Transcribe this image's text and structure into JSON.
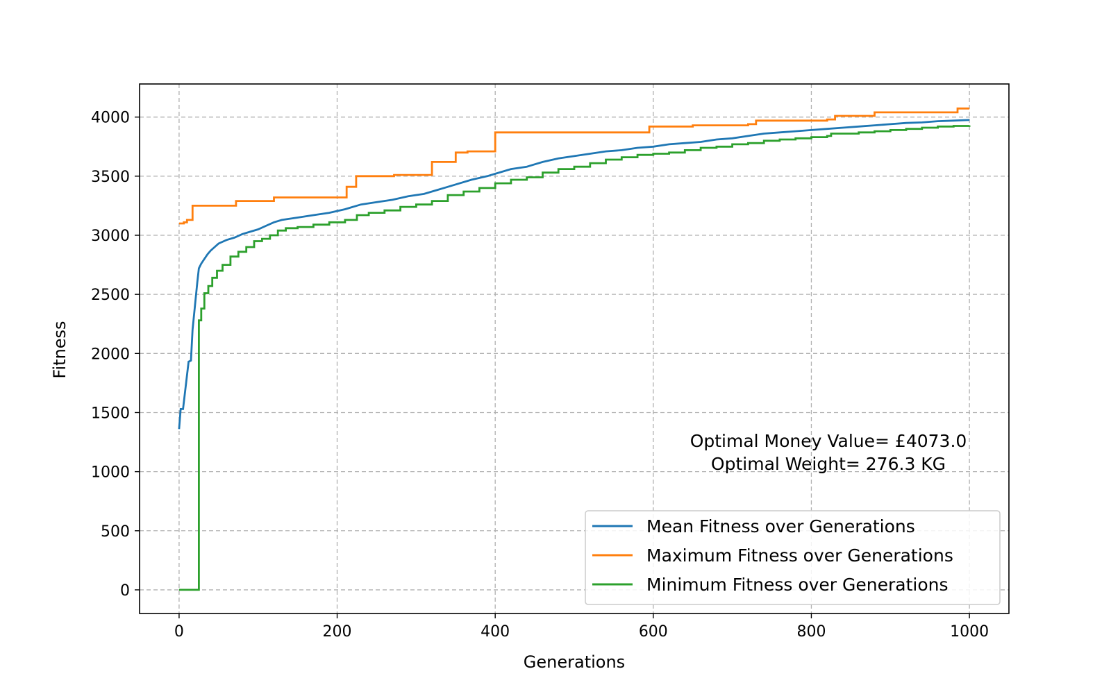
{
  "chart_data": {
    "type": "line",
    "title": "",
    "xlabel": "Generations",
    "ylabel": "Fitness",
    "xlim": [
      -50,
      1050
    ],
    "ylim": [
      -200,
      4280
    ],
    "x_ticks": [
      0,
      200,
      400,
      600,
      800,
      1000
    ],
    "y_ticks": [
      0,
      500,
      1000,
      1500,
      2000,
      2500,
      3000,
      3500,
      4000
    ],
    "grid": true,
    "legend_placement": "lower-right",
    "annotation": {
      "line1": "Optimal Money Value= £4073.0",
      "line2": "Optimal Weight= 276.3 KG"
    },
    "series": [
      {
        "name": "Mean Fitness over Generations",
        "color": "#1f77b4",
        "step": false,
        "points": [
          [
            0,
            1360
          ],
          [
            2,
            1530
          ],
          [
            5,
            1530
          ],
          [
            8,
            1700
          ],
          [
            12,
            1930
          ],
          [
            15,
            1940
          ],
          [
            17,
            2200
          ],
          [
            20,
            2400
          ],
          [
            23,
            2600
          ],
          [
            25,
            2720
          ],
          [
            28,
            2760
          ],
          [
            32,
            2800
          ],
          [
            36,
            2840
          ],
          [
            40,
            2870
          ],
          [
            45,
            2900
          ],
          [
            50,
            2930
          ],
          [
            60,
            2960
          ],
          [
            70,
            2980
          ],
          [
            80,
            3010
          ],
          [
            90,
            3030
          ],
          [
            100,
            3050
          ],
          [
            110,
            3080
          ],
          [
            120,
            3110
          ],
          [
            130,
            3130
          ],
          [
            150,
            3150
          ],
          [
            170,
            3170
          ],
          [
            190,
            3190
          ],
          [
            210,
            3220
          ],
          [
            230,
            3260
          ],
          [
            250,
            3280
          ],
          [
            270,
            3300
          ],
          [
            290,
            3330
          ],
          [
            310,
            3350
          ],
          [
            330,
            3390
          ],
          [
            350,
            3430
          ],
          [
            370,
            3470
          ],
          [
            390,
            3500
          ],
          [
            400,
            3520
          ],
          [
            420,
            3560
          ],
          [
            440,
            3580
          ],
          [
            460,
            3620
          ],
          [
            480,
            3650
          ],
          [
            500,
            3670
          ],
          [
            520,
            3690
          ],
          [
            540,
            3710
          ],
          [
            560,
            3720
          ],
          [
            580,
            3740
          ],
          [
            600,
            3750
          ],
          [
            620,
            3770
          ],
          [
            640,
            3780
          ],
          [
            660,
            3790
          ],
          [
            680,
            3810
          ],
          [
            700,
            3820
          ],
          [
            720,
            3840
          ],
          [
            740,
            3860
          ],
          [
            760,
            3870
          ],
          [
            780,
            3880
          ],
          [
            800,
            3890
          ],
          [
            820,
            3900
          ],
          [
            840,
            3910
          ],
          [
            860,
            3920
          ],
          [
            880,
            3930
          ],
          [
            900,
            3940
          ],
          [
            920,
            3950
          ],
          [
            940,
            3955
          ],
          [
            960,
            3965
          ],
          [
            980,
            3970
          ],
          [
            1000,
            3975
          ]
        ]
      },
      {
        "name": "Maximum Fitness over Generations",
        "color": "#ff7f0e",
        "step": true,
        "points": [
          [
            0,
            3100
          ],
          [
            3,
            3100
          ],
          [
            6,
            3110
          ],
          [
            10,
            3130
          ],
          [
            17,
            3250
          ],
          [
            72,
            3290
          ],
          [
            120,
            3320
          ],
          [
            212,
            3410
          ],
          [
            224,
            3500
          ],
          [
            272,
            3510
          ],
          [
            320,
            3620
          ],
          [
            350,
            3700
          ],
          [
            365,
            3710
          ],
          [
            400,
            3870
          ],
          [
            595,
            3920
          ],
          [
            650,
            3930
          ],
          [
            720,
            3940
          ],
          [
            730,
            3970
          ],
          [
            820,
            3980
          ],
          [
            830,
            4010
          ],
          [
            880,
            4040
          ],
          [
            950,
            4040
          ],
          [
            985,
            4073
          ],
          [
            1000,
            4073
          ]
        ]
      },
      {
        "name": "Minimum Fitness over Generations",
        "color": "#2ca02c",
        "step": true,
        "points": [
          [
            0,
            0
          ],
          [
            25,
            0
          ],
          [
            25,
            2280
          ],
          [
            28,
            2380
          ],
          [
            32,
            2510
          ],
          [
            37,
            2570
          ],
          [
            42,
            2640
          ],
          [
            48,
            2700
          ],
          [
            55,
            2750
          ],
          [
            65,
            2820
          ],
          [
            75,
            2860
          ],
          [
            85,
            2900
          ],
          [
            95,
            2950
          ],
          [
            105,
            2970
          ],
          [
            115,
            3000
          ],
          [
            125,
            3040
          ],
          [
            135,
            3060
          ],
          [
            150,
            3070
          ],
          [
            170,
            3090
          ],
          [
            190,
            3110
          ],
          [
            210,
            3130
          ],
          [
            225,
            3170
          ],
          [
            240,
            3190
          ],
          [
            260,
            3210
          ],
          [
            280,
            3240
          ],
          [
            300,
            3260
          ],
          [
            320,
            3290
          ],
          [
            340,
            3340
          ],
          [
            360,
            3370
          ],
          [
            380,
            3400
          ],
          [
            400,
            3440
          ],
          [
            420,
            3470
          ],
          [
            440,
            3490
          ],
          [
            460,
            3530
          ],
          [
            480,
            3560
          ],
          [
            500,
            3580
          ],
          [
            520,
            3610
          ],
          [
            540,
            3640
          ],
          [
            560,
            3660
          ],
          [
            580,
            3680
          ],
          [
            600,
            3690
          ],
          [
            620,
            3700
          ],
          [
            640,
            3720
          ],
          [
            660,
            3740
          ],
          [
            680,
            3750
          ],
          [
            700,
            3770
          ],
          [
            720,
            3780
          ],
          [
            740,
            3800
          ],
          [
            760,
            3810
          ],
          [
            780,
            3820
          ],
          [
            800,
            3830
          ],
          [
            820,
            3840
          ],
          [
            825,
            3860
          ],
          [
            860,
            3870
          ],
          [
            880,
            3880
          ],
          [
            900,
            3890
          ],
          [
            920,
            3900
          ],
          [
            940,
            3910
          ],
          [
            960,
            3920
          ],
          [
            980,
            3925
          ],
          [
            1000,
            3930
          ]
        ]
      }
    ]
  }
}
